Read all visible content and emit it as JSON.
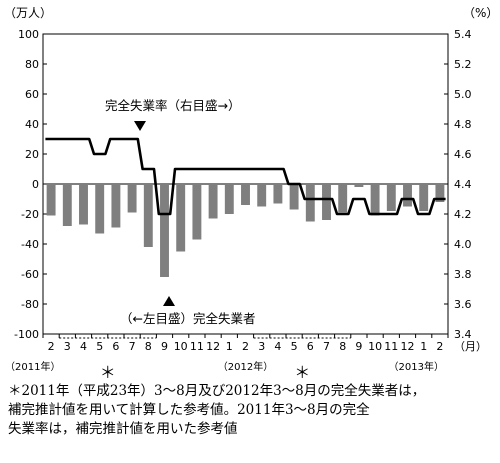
{
  "chart_data": {
    "type": "bar+line",
    "left_unit": "（万人）",
    "right_unit": "（%）",
    "month_unit": "（月）",
    "left_ticks": [
      "100",
      "80",
      "60",
      "40",
      "20",
      "0",
      "-20",
      "-40",
      "-60",
      "-80",
      "-100"
    ],
    "right_ticks": [
      "5.4",
      "5.2",
      "5.0",
      "4.8",
      "4.6",
      "4.4",
      "4.2",
      "4.0",
      "3.8",
      "3.6",
      "3.4"
    ],
    "left_ylim": [
      -100,
      100
    ],
    "right_ylim": [
      3.4,
      5.4
    ],
    "categories": [
      "2",
      "3",
      "4",
      "5",
      "6",
      "7",
      "8",
      "9",
      "10",
      "11",
      "12",
      "1",
      "2",
      "3",
      "4",
      "5",
      "6",
      "7",
      "8",
      "9",
      "10",
      "11",
      "12",
      "1",
      "2"
    ],
    "year_labels": [
      {
        "label": "（2011年）",
        "index": 0
      },
      {
        "label": "（2012年）",
        "index": 12
      },
      {
        "label": "（2013年）",
        "index": 24
      }
    ],
    "asterisk_marks": [
      {
        "label": "＊",
        "index": 4
      },
      {
        "label": "＊",
        "index": 16
      }
    ],
    "series": [
      {
        "name": "（←左目盛）完全失業者",
        "type": "bar",
        "axis": "left",
        "color": "#7f7f7f",
        "values": [
          -21,
          -28,
          -27,
          -33,
          -29,
          -19,
          -42,
          -62,
          -45,
          -37,
          -23,
          -20,
          -14,
          -15,
          -13,
          -17,
          -25,
          -24,
          -19,
          -2,
          -21,
          -18,
          -15,
          -18,
          -12
        ]
      },
      {
        "name": "完全失業率（右目盛→）",
        "type": "line",
        "axis": "right",
        "color": "#000000",
        "values": [
          4.7,
          4.7,
          4.7,
          4.6,
          4.7,
          4.7,
          4.5,
          4.2,
          4.5,
          4.5,
          4.5,
          4.5,
          4.5,
          4.5,
          4.5,
          4.4,
          4.3,
          4.3,
          4.2,
          4.3,
          4.2,
          4.2,
          4.3,
          4.2,
          4.3
        ]
      }
    ],
    "grid": false,
    "legend": "inline annotations"
  },
  "annotations": {
    "rate_label": "完全失業率（右目盛→）",
    "count_label": "（←左目盛）完全失業者"
  },
  "footnote": [
    "＊2011年（平成23年）3～8月及び2012年3～8月の完全失業者は，",
    "補完推計値を用いて計算した参考値。2011年3～8月の完全",
    "失業率は，補完推計値を用いた参考値"
  ]
}
